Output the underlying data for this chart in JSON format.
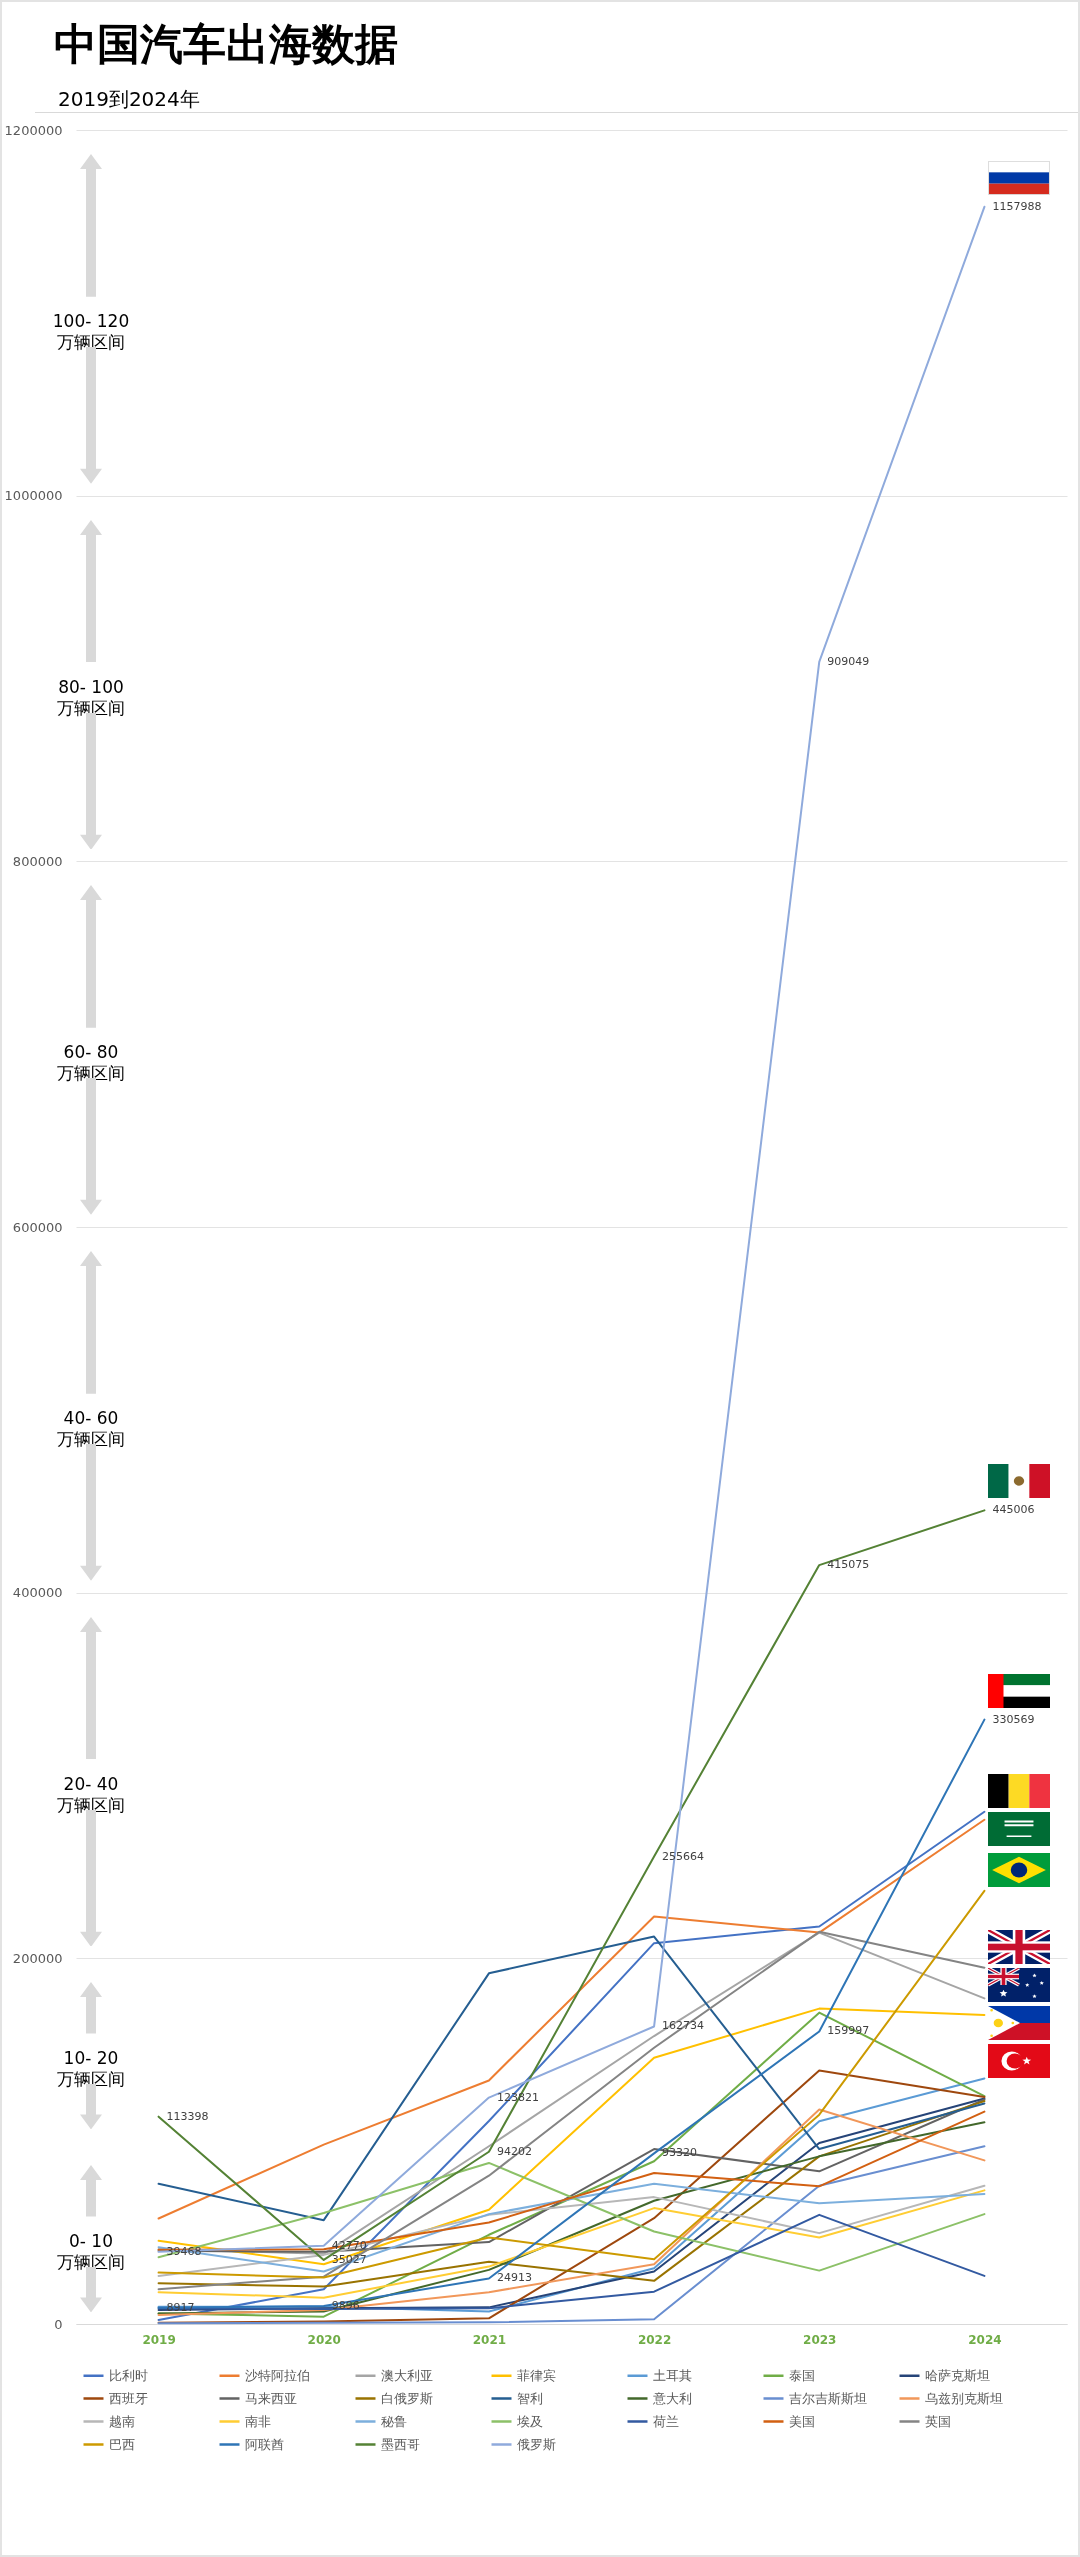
{
  "chart_data": {
    "type": "line",
    "title": "中国汽车出海数据",
    "subtitle": "2019到2024年",
    "categories": [
      "2019",
      "2020",
      "2021",
      "2022",
      "2023",
      "2024"
    ],
    "ylim": [
      0,
      1200000
    ],
    "yticks": [
      0,
      200000,
      400000,
      600000,
      800000,
      1000000,
      1200000
    ],
    "grid": "y",
    "legend": "bottom",
    "series": [
      {
        "name": "比利时",
        "color": "#4472c4",
        "values": [
          2200,
          19000,
          111000,
          208300,
          217400,
          280200
        ]
      },
      {
        "name": "沙特阿拉伯",
        "color": "#ed7d31",
        "values": [
          57700,
          98100,
          133200,
          222900,
          214100,
          275800
        ]
      },
      {
        "name": "澳大利亚",
        "color": "#a5a5a5",
        "values": [
          40900,
          38400,
          97200,
          157500,
          214100,
          178100
        ]
      },
      {
        "name": "菲律宾",
        "color": "#ffc000",
        "values": [
          45500,
          32700,
          62500,
          145600,
          172500,
          169000
        ]
      },
      {
        "name": "土耳其",
        "color": "#5b9bd5",
        "values": [
          9500,
          9500,
          6800,
          30500,
          110900,
          134300
        ]
      },
      {
        "name": "泰国",
        "color": "#70ad47",
        "values": [
          5800,
          4000,
          48800,
          89000,
          170300,
          124600
        ]
      },
      {
        "name": "哈萨克斯坦",
        "color": "#264478",
        "values": [
          7700,
          8600,
          9100,
          28700,
          99000,
          123300
        ]
      },
      {
        "name": "西班牙",
        "color": "#9e480e",
        "values": [
          700,
          1300,
          3100,
          57900,
          138700,
          124100
        ]
      },
      {
        "name": "马来西亚",
        "color": "#636363",
        "values": [
          40000,
          39500,
          44800,
          95700,
          83500,
          122800
        ]
      },
      {
        "name": "白俄罗斯",
        "color": "#997300",
        "values": [
          22300,
          20500,
          34000,
          23600,
          91700,
          121900
        ]
      },
      {
        "name": "智利",
        "color": "#255e91",
        "values": [
          76700,
          56800,
          191800,
          211900,
          95700,
          120600
        ]
      },
      {
        "name": "意大利",
        "color": "#43682b",
        "values": [
          5800,
          6800,
          29600,
          67400,
          91700,
          110300
        ]
      },
      {
        "name": "吉尔吉斯斯坦",
        "color": "#698ed0",
        "values": [
          400,
          700,
          900,
          2600,
          75600,
          97200
        ]
      },
      {
        "name": "乌兹别克斯坦",
        "color": "#f1975a",
        "values": [
          4900,
          7700,
          17400,
          32700,
          117300,
          89500
        ]
      },
      {
        "name": "越南",
        "color": "#b7b7b7",
        "values": [
          26300,
          37800,
          59700,
          69400,
          49700,
          75600
        ]
      },
      {
        "name": "南非",
        "color": "#ffcd33",
        "values": [
          17400,
          14400,
          31400,
          63400,
          47300,
          73100
        ]
      },
      {
        "name": "秘鲁",
        "color": "#7cafdd",
        "values": [
          42000,
          28700,
          60100,
          76700,
          66000,
          71100
        ]
      },
      {
        "name": "埃及",
        "color": "#8cc168",
        "values": [
          36500,
          60700,
          88100,
          50600,
          29200,
          60100
        ]
      },
      {
        "name": "荷兰",
        "color": "#335aa1",
        "values": [
          8600,
          8200,
          8600,
          17700,
          59700,
          26300
        ]
      },
      {
        "name": "美国",
        "color": "#d26012",
        "values": [
          40600,
          40900,
          55500,
          82600,
          75300,
          116200
        ]
      },
      {
        "name": "英国",
        "color": "#848484",
        "values": [
          19000,
          25900,
          81100,
          151100,
          214500,
          194900
        ]
      },
      {
        "name": "巴西",
        "color": "#cc9a00",
        "values": [
          28100,
          25400,
          47300,
          35400,
          114500,
          236900
        ]
      },
      {
        "name": "阿联酋",
        "color": "#2e75b6",
        "values": [
          8917,
          9896,
          24913,
          93320,
          159997,
          330569
        ],
        "value_labels": [
          "8917",
          "9896",
          "24913",
          "93320",
          "159997",
          "330569"
        ]
      },
      {
        "name": "墨西哥",
        "color": "#548235",
        "values": [
          113398,
          35027,
          94202,
          255664,
          415075,
          445006
        ],
        "value_labels": [
          "113398",
          "35027",
          "94202",
          "255664",
          "415075",
          "445006"
        ]
      },
      {
        "name": "俄罗斯",
        "color": "#8faadc",
        "values": [
          39468,
          42770,
          123821,
          162734,
          909049,
          1157988
        ],
        "value_labels": [
          "39468",
          "42770",
          "123821",
          "162734",
          "909049",
          "1157988"
        ]
      }
    ],
    "annotations": [
      "100- 120 万辆区间",
      "80- 100 万辆区间",
      "60- 80 万辆区间",
      "40- 60 万辆区间",
      "20- 40 万辆区间",
      "10- 20 万辆区间",
      "0- 10 万辆区间"
    ]
  }
}
